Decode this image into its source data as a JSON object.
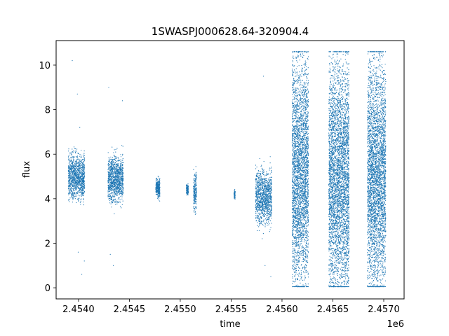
{
  "chart_data": {
    "type": "scatter",
    "title": "1SWASPJ000628.64-320904.4",
    "xlabel": "time",
    "ylabel": "flux",
    "x_offset_label": "1e6",
    "xlim": [
      2453780,
      2457200
    ],
    "ylim": [
      -0.5,
      11.1
    ],
    "x_ticks": [
      2.454,
      2.4545,
      2.455,
      2.4555,
      2.456,
      2.4565,
      2.457
    ],
    "x_tick_labels": [
      "2.4540",
      "2.4545",
      "2.4550",
      "2.4555",
      "2.4560",
      "2.4565",
      "2.4570"
    ],
    "y_ticks": [
      0,
      2,
      4,
      6,
      8,
      10
    ],
    "y_tick_labels": [
      "0",
      "2",
      "4",
      "6",
      "8",
      "10"
    ],
    "grid": false,
    "legend": "none",
    "point_color": "#1f77b4",
    "series": [
      {
        "clusters": [
          {
            "x_range": [
              2453900,
              2454060
            ],
            "y_center": 5.0,
            "y_spread": 0.5,
            "outliers": [
              0.6,
              1.2,
              1.6,
              7.2,
              8.7,
              10.2
            ]
          },
          {
            "x_range": [
              2454290,
              2454440
            ],
            "y_center": 4.9,
            "y_spread": 0.5,
            "outliers": [
              1.0,
              1.5,
              6.2,
              8.4,
              9.0
            ]
          },
          {
            "x_range": [
              2454760,
              2454800
            ],
            "y_center": 4.5,
            "y_spread": 0.2,
            "outliers": []
          },
          {
            "x_range": [
              2455060,
              2455080
            ],
            "y_center": 4.4,
            "y_spread": 0.1,
            "outliers": []
          },
          {
            "x_range": [
              2455130,
              2455160
            ],
            "y_center": 4.3,
            "y_spread": 0.4,
            "outliers": [
              5.1
            ]
          },
          {
            "x_range": [
              2455530,
              2455540
            ],
            "y_center": 4.2,
            "y_spread": 0.1,
            "outliers": []
          },
          {
            "x_range": [
              2455740,
              2455900
            ],
            "y_center": 4.1,
            "y_spread": 0.6,
            "outliers": [
              0.5,
              1.0,
              9.5
            ]
          },
          {
            "x_range": [
              2456100,
              2456260
            ],
            "y_center": 5.2,
            "y_spread": 2.6,
            "outliers": []
          },
          {
            "x_range": [
              2456460,
              2456660
            ],
            "y_center": 5.0,
            "y_spread": 2.6,
            "outliers": []
          },
          {
            "x_range": [
              2456840,
              2457020
            ],
            "y_center": 5.1,
            "y_spread": 2.6,
            "outliers": []
          }
        ]
      }
    ]
  }
}
